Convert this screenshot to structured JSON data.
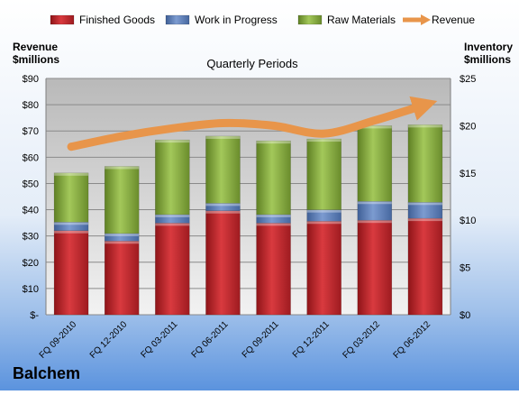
{
  "company": "Balchem",
  "chart_data": {
    "type": "bar",
    "subtitle": "Quarterly Periods",
    "left_axis": {
      "label_line1": "Revenue",
      "label_line2": "$millions",
      "ylim": [
        0,
        90
      ],
      "ticks": [
        "$-",
        "$10",
        "$20",
        "$30",
        "$40",
        "$50",
        "$60",
        "$70",
        "$80",
        "$90"
      ]
    },
    "right_axis": {
      "label_line1": "Inventory",
      "label_line2": "$millions",
      "ylim": [
        0,
        25
      ],
      "ticks": [
        "$0",
        "$5",
        "$10",
        "$15",
        "$20",
        "$25"
      ]
    },
    "categories": [
      "FQ 09-2010",
      "FQ 12-2010",
      "FQ 03-2011",
      "FQ 06-2011",
      "FQ 09-2011",
      "FQ 12-2011",
      "FQ 03-2012",
      "FQ 06-2012"
    ],
    "legend": [
      {
        "name": "Finished Goods",
        "color": "#C0272D"
      },
      {
        "name": "Work in Progress",
        "color": "#5D7FB8"
      },
      {
        "name": "Raw Materials",
        "color": "#8DB041"
      },
      {
        "name": "Revenue",
        "color": "#E8954A"
      }
    ],
    "inventory_series": [
      {
        "name": "Finished Goods",
        "color": "#C0272D",
        "values": [
          8.9,
          7.8,
          9.7,
          11.0,
          9.7,
          9.9,
          10.0,
          10.2
        ]
      },
      {
        "name": "Work in Progress",
        "color": "#5D7FB8",
        "values": [
          0.9,
          0.8,
          0.9,
          0.8,
          0.9,
          1.2,
          2.0,
          1.7
        ]
      },
      {
        "name": "Raw Materials",
        "color": "#8DB041",
        "values": [
          5.2,
          7.1,
          7.9,
          7.1,
          7.8,
          7.5,
          8.0,
          8.2
        ]
      }
    ],
    "revenue_series": {
      "name": "Revenue",
      "color": "#E8954A",
      "values": [
        64,
        68,
        71,
        73,
        72,
        69,
        74,
        80
      ]
    },
    "legend_position": "top",
    "grid": true
  }
}
